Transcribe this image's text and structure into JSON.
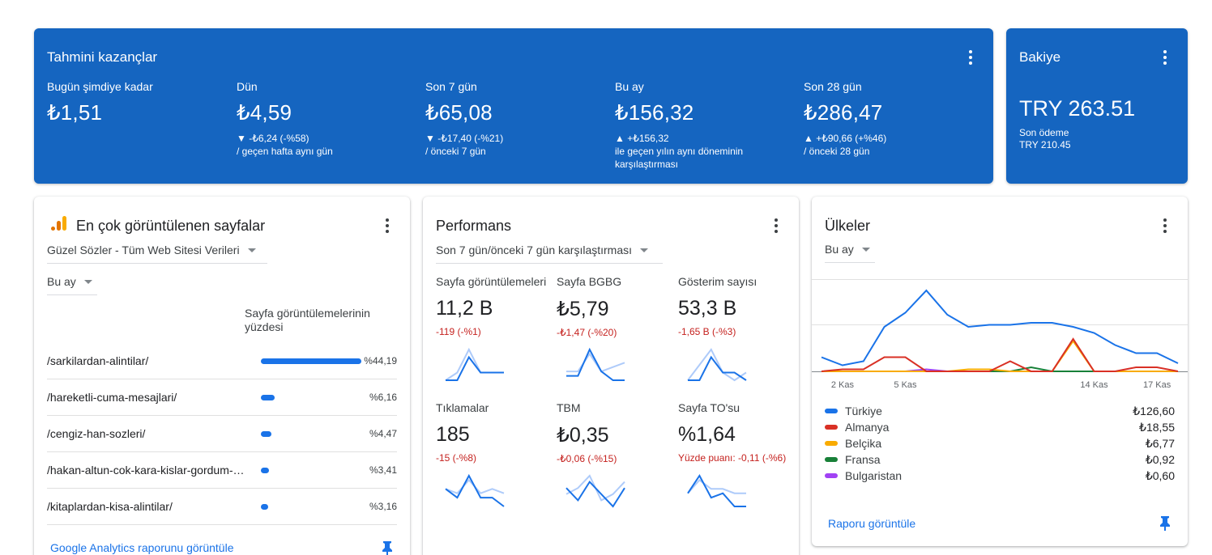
{
  "earnings": {
    "title": "Tahmini kazançlar",
    "columns": [
      {
        "label": "Bugün şimdiye kadar",
        "value": "₺1,51",
        "change": "",
        "compare": ""
      },
      {
        "label": "Dün",
        "value": "₺4,59",
        "change": "▼ -₺6,24 (-%58)",
        "compare": "/ geçen hafta aynı gün"
      },
      {
        "label": "Son 7 gün",
        "value": "₺65,08",
        "change": "▼ -₺17,40 (-%21)",
        "compare": "/ önceki 7 gün"
      },
      {
        "label": "Bu ay",
        "value": "₺156,32",
        "change": "▲ +₺156,32",
        "compare": "ile geçen yılın aynı döneminin karşılaştırması"
      },
      {
        "label": "Son 28 gün",
        "value": "₺286,47",
        "change": "▲ +₺90,66 (+%46)",
        "compare": "/ önceki 28 gün"
      }
    ]
  },
  "balance": {
    "title": "Bakiye",
    "value": "TRY 263.51",
    "last_payment_label": "Son ödeme",
    "last_payment_value": "TRY 210.45"
  },
  "top_pages": {
    "title": "En çok görüntülenen sayfalar",
    "property": "Güzel Sözler - Tüm Web Sitesi Verileri",
    "period": "Bu ay",
    "column_header": "Sayfa görüntülemelerinin yüzdesi",
    "rows": [
      {
        "path": "/sarkilardan-alintilar/",
        "pct": "%44,19",
        "share": 44.19
      },
      {
        "path": "/hareketli-cuma-mesajlari/",
        "pct": "%6,16",
        "share": 6.16
      },
      {
        "path": "/cengiz-han-sozleri/",
        "pct": "%4,47",
        "share": 4.47
      },
      {
        "path": "/hakan-altun-cok-kara-kislar-gordum-sozleri/",
        "pct": "%3,41",
        "share": 3.41
      },
      {
        "path": "/kitaplardan-kisa-alintilar/",
        "pct": "%3,16",
        "share": 3.16
      }
    ],
    "link": "Google Analytics raporunu görüntüle"
  },
  "performance": {
    "title": "Performans",
    "period": "Son 7 gün/önceki 7 gün karşılaştırması",
    "metrics": [
      {
        "label": "Sayfa görüntülemeleri",
        "value": "11,2 B",
        "change": "-119 (-%1)",
        "current": [
          3,
          3,
          6,
          4,
          4,
          4
        ],
        "previous": [
          3,
          4,
          7,
          4,
          4,
          4
        ]
      },
      {
        "label": "Sayfa BGBG",
        "value": "₺5,79",
        "change": "-₺1,47 (-%20)",
        "current": [
          2,
          2,
          8,
          3,
          1,
          1
        ],
        "previous": [
          3,
          3,
          7,
          3,
          4,
          5
        ]
      },
      {
        "label": "Gösterim sayısı",
        "value": "53,3 B",
        "change": "-1,65 B (-%3)",
        "current": [
          4,
          4,
          7,
          5,
          5,
          4
        ],
        "previous": [
          4,
          6,
          8,
          5,
          4,
          5
        ]
      },
      {
        "label": "Tıklamalar",
        "value": "185",
        "change": "-15 (-%8)",
        "current": [
          4,
          2,
          7,
          2,
          2,
          0
        ],
        "previous": [
          4,
          3,
          6,
          3,
          4,
          3
        ]
      },
      {
        "label": "TBM",
        "value": "₺0,35",
        "change": "-₺0,06 (-%15)",
        "current": [
          5,
          3,
          6,
          4,
          2,
          5
        ],
        "previous": [
          4,
          5,
          7,
          3,
          4,
          6
        ]
      },
      {
        "label": "Sayfa TO'su",
        "value": "%1,64",
        "change": "Yüzde puanı: -0,11 (-%6)",
        "current": [
          3,
          7,
          2,
          3,
          0,
          0
        ],
        "previous": [
          3,
          6,
          4,
          4,
          3,
          3
        ]
      }
    ]
  },
  "countries": {
    "title": "Ülkeler",
    "period": "Bu ay",
    "link": "Raporu görüntüle",
    "chart_data": {
      "type": "line",
      "x_ticks": [
        "2 Kas",
        "5 Kas",
        "14 Kas",
        "17 Kas"
      ],
      "series": [
        {
          "name": "Türkiye",
          "color": "#1a73e8",
          "values": [
            7,
            3,
            5,
            22,
            29,
            40,
            28,
            22,
            23,
            23,
            24,
            24,
            22,
            19,
            13,
            9,
            9,
            4
          ]
        },
        {
          "name": "Almanya",
          "color": "#d93025",
          "values": [
            0,
            1,
            1,
            7,
            7,
            0,
            0,
            0,
            0,
            5,
            0,
            0,
            16,
            0,
            0,
            2,
            2,
            0
          ]
        },
        {
          "name": "Belçika",
          "color": "#f9ab00",
          "values": [
            0,
            0,
            0,
            0,
            0,
            0,
            0,
            1,
            1,
            0,
            0,
            0,
            15,
            0,
            0,
            0,
            0,
            0
          ]
        },
        {
          "name": "Fransa",
          "color": "#188038",
          "values": [
            0,
            0,
            0,
            0,
            0,
            0,
            0,
            0,
            0,
            0,
            2,
            0,
            0,
            0,
            0,
            0,
            0,
            0
          ]
        },
        {
          "name": "Bulgaristan",
          "color": "#a142f4",
          "values": [
            0,
            0,
            0,
            0,
            0,
            1,
            0,
            0,
            0,
            0,
            0,
            0,
            0,
            0,
            0,
            0,
            0,
            0
          ]
        }
      ]
    },
    "legend": [
      {
        "name": "Türkiye",
        "value": "₺126,60",
        "color": "#1a73e8"
      },
      {
        "name": "Almanya",
        "value": "₺18,55",
        "color": "#d93025"
      },
      {
        "name": "Belçika",
        "value": "₺6,77",
        "color": "#f9ab00"
      },
      {
        "name": "Fransa",
        "value": "₺0,92",
        "color": "#188038"
      },
      {
        "name": "Bulgaristan",
        "value": "₺0,60",
        "color": "#a142f4"
      }
    ]
  }
}
